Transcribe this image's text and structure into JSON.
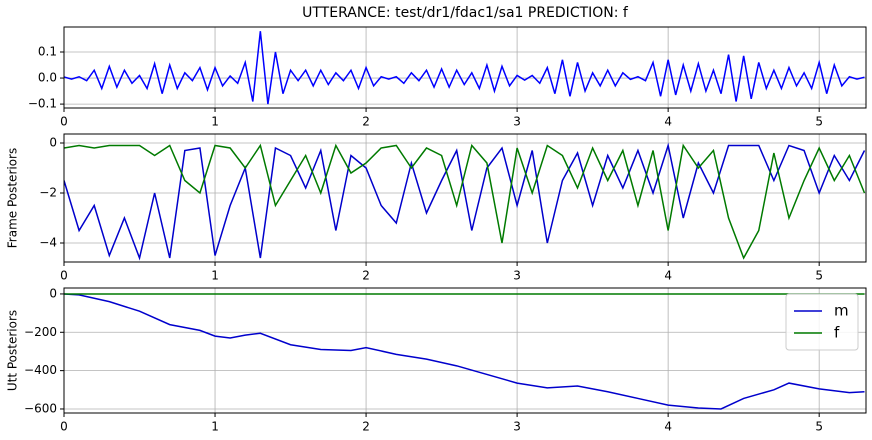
{
  "chart_data": [
    {
      "type": "line",
      "title": "UTTERANCE: test/dr1/fdac1/sa1  PREDICTION: f",
      "grid": true,
      "xlim": [
        0,
        5.31
      ],
      "ylim": [
        -0.115,
        0.196
      ],
      "xticks": [
        0,
        1,
        2,
        3,
        4,
        5
      ],
      "yticks": [
        {
          "value": -0.1,
          "label": "−0.1"
        },
        {
          "value": 0,
          "label": "0.0"
        },
        0.1
      ],
      "x": [
        0,
        0.05,
        0.1,
        0.15,
        0.2,
        0.25,
        0.3,
        0.35,
        0.4,
        0.45,
        0.5,
        0.55,
        0.6,
        0.65,
        0.7,
        0.75,
        0.8,
        0.85,
        0.9,
        0.95,
        1.0,
        1.05,
        1.1,
        1.15,
        1.2,
        1.25,
        1.3,
        1.35,
        1.4,
        1.45,
        1.5,
        1.55,
        1.6,
        1.65,
        1.7,
        1.75,
        1.8,
        1.85,
        1.9,
        1.95,
        2.0,
        2.05,
        2.1,
        2.15,
        2.2,
        2.25,
        2.3,
        2.35,
        2.4,
        2.45,
        2.5,
        2.55,
        2.6,
        2.65,
        2.7,
        2.75,
        2.8,
        2.85,
        2.9,
        2.95,
        3.0,
        3.05,
        3.1,
        3.15,
        3.2,
        3.25,
        3.3,
        3.35,
        3.4,
        3.45,
        3.5,
        3.55,
        3.6,
        3.65,
        3.7,
        3.75,
        3.8,
        3.85,
        3.9,
        3.95,
        4.0,
        4.05,
        4.1,
        4.15,
        4.2,
        4.25,
        4.3,
        4.35,
        4.4,
        4.45,
        4.5,
        4.55,
        4.6,
        4.65,
        4.7,
        4.75,
        4.8,
        4.85,
        4.9,
        4.95,
        5.0,
        5.05,
        5.1,
        5.15,
        5.2,
        5.25,
        5.3
      ],
      "series": [
        {
          "color": "#0000ff",
          "values": [
            0.004,
            -0.004,
            0.005,
            -0.01,
            0.03,
            -0.04,
            0.045,
            -0.035,
            0.03,
            -0.02,
            0.01,
            -0.04,
            0.055,
            -0.06,
            0.05,
            -0.04,
            0.02,
            -0.01,
            0.04,
            -0.045,
            0.04,
            -0.03,
            0.008,
            -0.02,
            0.06,
            -0.09,
            0.18,
            -0.1,
            0.1,
            -0.06,
            0.03,
            -0.01,
            0.03,
            -0.03,
            0.03,
            -0.025,
            0.02,
            -0.01,
            0.03,
            -0.04,
            0.04,
            -0.03,
            0.005,
            -0.004,
            0.005,
            -0.02,
            0.02,
            -0.01,
            0.03,
            -0.035,
            0.035,
            -0.035,
            0.03,
            -0.025,
            0.02,
            -0.04,
            0.05,
            -0.05,
            0.045,
            -0.03,
            0.01,
            -0.008,
            0.01,
            -0.02,
            0.04,
            -0.06,
            0.07,
            -0.07,
            0.06,
            -0.05,
            0.02,
            -0.03,
            0.03,
            -0.03,
            0.02,
            -0.005,
            0.005,
            -0.01,
            0.06,
            -0.07,
            0.07,
            -0.065,
            0.05,
            -0.05,
            0.055,
            -0.05,
            0.03,
            -0.06,
            0.09,
            -0.09,
            0.085,
            -0.08,
            0.06,
            -0.04,
            0.03,
            -0.04,
            0.04,
            -0.03,
            0.02,
            -0.04,
            0.06,
            -0.06,
            0.05,
            -0.03,
            0.005,
            -0.004,
            0.003
          ]
        }
      ]
    },
    {
      "type": "line",
      "ylabel": "Frame Posteriors",
      "grid": true,
      "xlim": [
        0,
        5.31
      ],
      "ylim": [
        -4.76,
        0.36
      ],
      "xticks": [
        0,
        1,
        2,
        3,
        4,
        5
      ],
      "yticks": [
        {
          "value": -4,
          "label": "−4"
        },
        {
          "value": -2,
          "label": "−2"
        },
        0
      ],
      "x": [
        0,
        0.1,
        0.2,
        0.3,
        0.4,
        0.5,
        0.6,
        0.7,
        0.8,
        0.9,
        1.0,
        1.1,
        1.2,
        1.3,
        1.4,
        1.5,
        1.6,
        1.7,
        1.8,
        1.9,
        2.0,
        2.1,
        2.2,
        2.3,
        2.4,
        2.5,
        2.6,
        2.7,
        2.8,
        2.9,
        3.0,
        3.1,
        3.2,
        3.3,
        3.4,
        3.5,
        3.6,
        3.7,
        3.8,
        3.9,
        4.0,
        4.1,
        4.2,
        4.3,
        4.4,
        4.5,
        4.6,
        4.7,
        4.8,
        4.9,
        5.0,
        5.1,
        5.2,
        5.3
      ],
      "series": [
        {
          "color": "#0000cc",
          "values": [
            -1.5,
            -3.5,
            -2.5,
            -4.5,
            -3.0,
            -4.6,
            -2.0,
            -4.6,
            -0.3,
            -0.2,
            -4.5,
            -2.5,
            -1.0,
            -4.6,
            -0.2,
            -0.5,
            -1.8,
            -0.3,
            -3.5,
            -0.5,
            -1.0,
            -2.5,
            -3.2,
            -0.8,
            -2.8,
            -1.5,
            -0.3,
            -3.5,
            -1.0,
            -0.2,
            -2.5,
            -0.3,
            -4.0,
            -1.5,
            -0.4,
            -2.5,
            -0.5,
            -1.8,
            -0.3,
            -2.0,
            -0.1,
            -3.0,
            -0.8,
            -2.0,
            -0.1,
            -0.1,
            -0.1,
            -1.5,
            -0.1,
            -0.3,
            -2.0,
            -0.5,
            -1.5,
            -0.3
          ]
        },
        {
          "color": "#007a00",
          "values": [
            -0.2,
            -0.1,
            -0.2,
            -0.1,
            -0.1,
            -0.1,
            -0.5,
            -0.1,
            -1.5,
            -2.0,
            -0.1,
            -0.2,
            -1.0,
            -0.1,
            -2.5,
            -1.5,
            -0.5,
            -2.0,
            -0.1,
            -1.2,
            -0.8,
            -0.2,
            -0.1,
            -1.0,
            -0.2,
            -0.5,
            -2.5,
            -0.1,
            -0.8,
            -4.0,
            -0.2,
            -2.0,
            -0.1,
            -0.5,
            -1.8,
            -0.2,
            -1.5,
            -0.3,
            -2.5,
            -0.3,
            -3.5,
            -0.1,
            -1.0,
            -0.3,
            -3.0,
            -4.6,
            -3.5,
            -0.4,
            -3.0,
            -1.5,
            -0.2,
            -1.5,
            -0.5,
            -2.0
          ]
        }
      ]
    },
    {
      "type": "line",
      "ylabel": "Utt Posteriors",
      "grid": true,
      "legend": "upper right",
      "xlim": [
        0,
        5.31
      ],
      "ylim": [
        -621,
        31
      ],
      "xticks": [
        0,
        1,
        2,
        3,
        4,
        5
      ],
      "yticks": [
        {
          "value": -600,
          "label": "−600"
        },
        {
          "value": -400,
          "label": "−400"
        },
        {
          "value": -200,
          "label": "−200"
        },
        0
      ],
      "x": [
        0,
        0.1,
        0.3,
        0.5,
        0.7,
        0.9,
        1.0,
        1.1,
        1.2,
        1.3,
        1.5,
        1.7,
        1.9,
        2.0,
        2.2,
        2.4,
        2.6,
        2.8,
        3.0,
        3.2,
        3.4,
        3.6,
        3.8,
        4.0,
        4.2,
        4.35,
        4.5,
        4.7,
        4.8,
        5.0,
        5.2,
        5.3
      ],
      "series": [
        {
          "name": "m",
          "color": "#0000cc",
          "values": [
            0,
            -5,
            -40,
            -90,
            -160,
            -190,
            -220,
            -230,
            -215,
            -205,
            -265,
            -290,
            -295,
            -280,
            -315,
            -340,
            -375,
            -420,
            -465,
            -490,
            -480,
            -510,
            -545,
            -580,
            -595,
            -600,
            -545,
            -500,
            -465,
            -495,
            -515,
            -510
          ]
        },
        {
          "name": "f",
          "color": "#007a00",
          "values": [
            0,
            0,
            0,
            0,
            0,
            0,
            0,
            0,
            0,
            0,
            0,
            0,
            0,
            0,
            0,
            0,
            0,
            0,
            0,
            0,
            0,
            0,
            0,
            0,
            0,
            0,
            0,
            0,
            0,
            0,
            0,
            0
          ]
        }
      ]
    }
  ]
}
